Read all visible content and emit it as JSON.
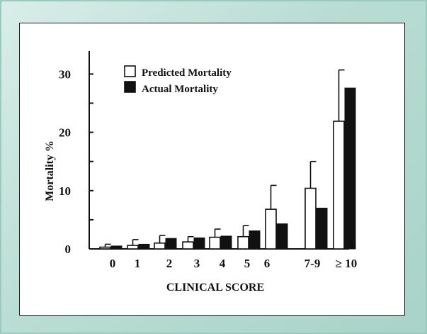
{
  "chart_data": {
    "type": "bar",
    "xlabel": "CLINICAL SCORE",
    "ylabel": "Mortality %",
    "ylim": [
      0,
      30
    ],
    "yticks": [
      0,
      10,
      20,
      30
    ],
    "categories": [
      "0",
      "1",
      "2",
      "3",
      "4",
      "5",
      "6",
      "7-9",
      "≥ 10"
    ],
    "series": [
      {
        "name": "Predicted Mortality",
        "fill": "#ffffff",
        "values": [
          0.3,
          0.6,
          1.0,
          1.2,
          2.0,
          2.1,
          6.8,
          10.4,
          21.9
        ],
        "error_upper": [
          0.8,
          1.6,
          2.3,
          2.1,
          3.4,
          4.0,
          10.9,
          15.0,
          30.7
        ]
      },
      {
        "name": "Actual Mortality",
        "fill": "#111111",
        "values": [
          0.5,
          0.8,
          1.8,
          1.9,
          2.2,
          3.1,
          4.3,
          7.0,
          27.6
        ]
      }
    ],
    "legend_position": "top-left",
    "grid": false
  }
}
